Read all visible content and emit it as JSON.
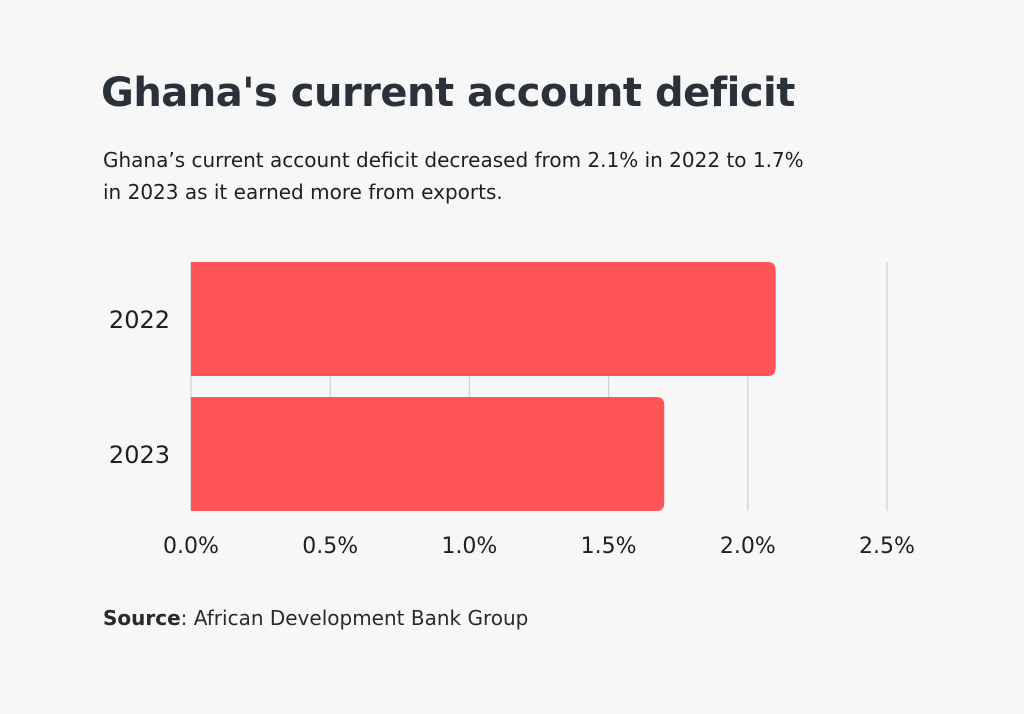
{
  "header": {
    "title": "Ghana's current account deficit",
    "subtitle": "Ghana’s current account deficit decreased from 2.1% in 2022 to 1.7% in 2023 as it earned more from exports."
  },
  "footer": {
    "source_label": "Source",
    "source_separator": ":",
    "source_text": " African Development Bank Group"
  },
  "colors": {
    "bar": "#ff5558",
    "grid": "#cfcfcf",
    "background": "#f7f7f7",
    "text": "#1f1f1f"
  },
  "chart_data": {
    "type": "bar",
    "orientation": "horizontal",
    "title": "Ghana's current account deficit",
    "categories": [
      "2022",
      "2023"
    ],
    "values": [
      2.1,
      1.7
    ],
    "xlabel": "",
    "ylabel": "",
    "xlim": [
      0,
      2.5
    ],
    "ticks": [
      0,
      0.5,
      1.0,
      1.5,
      2.0,
      2.5
    ],
    "tick_labels": [
      "0.0%",
      "0.5%",
      "1.0%",
      "1.5%",
      "2.0%",
      "2.5%"
    ],
    "grid": true
  }
}
